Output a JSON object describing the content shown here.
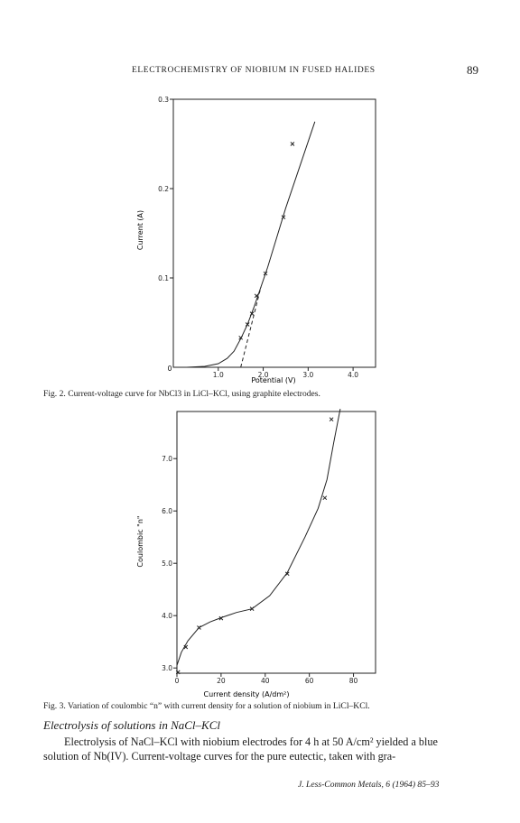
{
  "page": {
    "running_header": "ELECTROCHEMISTRY OF NIOBIUM IN FUSED HALIDES",
    "page_number": "89",
    "fig2_caption": "Fig. 2. Current-voltage curve for NbCl3 in LiCl–KCl, using graphite electrodes.",
    "fig3_caption": "Fig. 3. Variation of coulombic “n” with current density for a solution of niobium in LiCl–KCl.",
    "section_heading": "Electrolysis of solutions in NaCl–KCl",
    "body_line1": "Electrolysis of NaCl–KCl with niobium electrodes for 4 h at 50 A/cm² yielded a blue",
    "body_line2": "solution of Nb(IV). Current-voltage curves for the pure eutectic, taken with gra-",
    "journal_ref": "J. Less-Common Metals, 6 (1964) 85–93"
  },
  "chart_data": [
    {
      "type": "line",
      "title": "",
      "xlabel": "Potential (V)",
      "ylabel": "Current (A)",
      "xlim": [
        0.0,
        4.5
      ],
      "ylim": [
        0.0,
        0.3
      ],
      "x_ticks": [
        "1.0",
        "2.0",
        "3.0",
        "4.0"
      ],
      "y_ticks": [
        "0.1",
        "0.2",
        "0.3"
      ],
      "origin_label": "0",
      "points": [
        [
          1.5,
          0.033
        ],
        [
          1.65,
          0.048
        ],
        [
          1.75,
          0.06
        ],
        [
          1.85,
          0.08
        ],
        [
          2.05,
          0.105
        ],
        [
          2.45,
          0.168
        ],
        [
          2.65,
          0.25
        ]
      ],
      "curve": [
        [
          0.3,
          0.0
        ],
        [
          0.7,
          0.001
        ],
        [
          1.0,
          0.004
        ],
        [
          1.2,
          0.01
        ],
        [
          1.35,
          0.018
        ],
        [
          1.5,
          0.032
        ],
        [
          1.65,
          0.048
        ],
        [
          1.8,
          0.068
        ],
        [
          2.1,
          0.112
        ],
        [
          2.5,
          0.178
        ],
        [
          3.15,
          0.275
        ]
      ],
      "extrapolation": [
        [
          1.5,
          0.0
        ],
        [
          1.95,
          0.09
        ]
      ],
      "grid": false
    },
    {
      "type": "line",
      "title": "",
      "xlabel": "Current density (A/dm²)",
      "ylabel": "Coulombic \"n\"",
      "xlim": [
        0,
        90
      ],
      "ylim": [
        2.9,
        7.9
      ],
      "x_ticks": [
        "0",
        "20",
        "40",
        "60",
        "80"
      ],
      "y_ticks": [
        "3.0",
        "4.0",
        "5.0",
        "6.0",
        "7.0"
      ],
      "points": [
        [
          0.5,
          2.92
        ],
        [
          4,
          3.4
        ],
        [
          10,
          3.77
        ],
        [
          20,
          3.95
        ],
        [
          34,
          4.13
        ],
        [
          50,
          4.8
        ],
        [
          67,
          6.25
        ],
        [
          70,
          7.75
        ]
      ],
      "curve": [
        [
          0,
          3.05
        ],
        [
          2,
          3.3
        ],
        [
          5,
          3.52
        ],
        [
          10,
          3.77
        ],
        [
          15,
          3.88
        ],
        [
          20,
          3.96
        ],
        [
          27,
          4.06
        ],
        [
          34,
          4.13
        ],
        [
          42,
          4.38
        ],
        [
          50,
          4.82
        ],
        [
          58,
          5.5
        ],
        [
          64,
          6.05
        ],
        [
          68,
          6.6
        ],
        [
          71,
          7.3
        ],
        [
          74,
          7.95
        ]
      ],
      "grid": false
    }
  ]
}
